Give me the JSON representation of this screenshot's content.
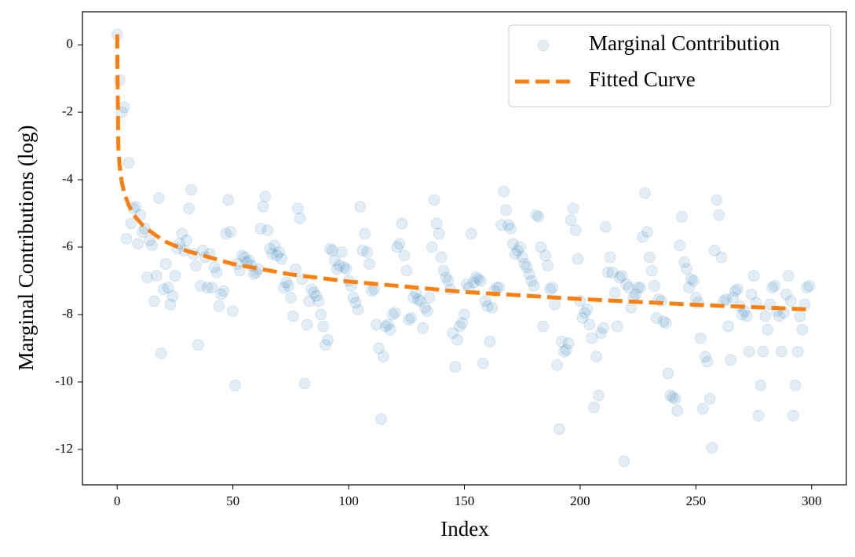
{
  "chart_data": {
    "type": "scatter",
    "xlabel": "Index",
    "ylabel": "Marginal Contributions (log)",
    "xlim": [
      -15,
      315
    ],
    "ylim": [
      -13.05,
      0.98
    ],
    "xticks": [
      0,
      50,
      100,
      150,
      200,
      250,
      300
    ],
    "yticks": [
      0,
      -2,
      -4,
      -6,
      -8,
      -10,
      -12
    ],
    "legend": "upper right",
    "series": [
      {
        "name": "Marginal Contribution",
        "type": "scatter",
        "color": "#1f77b4",
        "x": [
          0,
          1,
          2,
          3,
          4,
          5,
          6,
          7,
          8,
          9,
          10,
          11,
          12,
          13,
          14,
          15,
          16,
          17,
          18,
          19,
          20,
          21,
          22,
          23,
          24,
          25,
          26,
          27,
          28,
          29,
          30,
          31,
          32,
          33,
          34,
          35,
          36,
          37,
          38,
          39,
          40,
          41,
          42,
          43,
          44,
          45,
          46,
          47,
          48,
          49,
          50,
          51,
          52,
          53,
          54,
          55,
          56,
          57,
          58,
          59,
          60,
          61,
          62,
          63,
          64,
          65,
          66,
          67,
          68,
          69,
          70,
          71,
          72,
          73,
          74,
          75,
          76,
          77,
          78,
          79,
          80,
          81,
          82,
          83,
          84,
          85,
          86,
          87,
          88,
          89,
          90,
          91,
          92,
          93,
          94,
          95,
          96,
          97,
          98,
          99,
          100,
          101,
          102,
          103,
          104,
          105,
          106,
          107,
          108,
          109,
          110,
          111,
          112,
          113,
          114,
          115,
          116,
          117,
          118,
          119,
          120,
          121,
          122,
          123,
          124,
          125,
          126,
          127,
          128,
          129,
          130,
          131,
          132,
          133,
          134,
          135,
          136,
          137,
          138,
          139,
          140,
          141,
          142,
          143,
          144,
          145,
          146,
          147,
          148,
          149,
          150,
          151,
          152,
          153,
          154,
          155,
          156,
          157,
          158,
          159,
          160,
          161,
          162,
          163,
          164,
          165,
          166,
          167,
          168,
          169,
          170,
          171,
          172,
          173,
          174,
          175,
          176,
          177,
          178,
          179,
          180,
          181,
          182,
          183,
          184,
          185,
          186,
          187,
          188,
          189,
          190,
          191,
          192,
          193,
          194,
          195,
          196,
          197,
          198,
          199,
          200,
          201,
          202,
          203,
          204,
          205,
          206,
          207,
          208,
          209,
          210,
          211,
          212,
          213,
          214,
          215,
          216,
          217,
          218,
          219,
          220,
          221,
          222,
          223,
          224,
          225,
          226,
          227,
          228,
          229,
          230,
          231,
          232,
          233,
          234,
          235,
          236,
          237,
          238,
          239,
          240,
          241,
          242,
          243,
          244,
          245,
          246,
          247,
          248,
          249,
          250,
          251,
          252,
          253,
          254,
          255,
          256,
          257,
          258,
          259,
          260,
          261,
          262,
          263,
          264,
          265,
          266,
          267,
          268,
          269,
          270,
          271,
          272,
          273,
          274,
          275,
          276,
          277,
          278,
          279,
          280,
          281,
          282,
          283,
          284,
          285,
          286,
          287,
          288,
          289,
          290,
          291,
          292,
          293,
          294,
          295,
          296,
          297,
          298,
          299
        ],
        "values": [
          0.3,
          -1.05,
          -2.0,
          -1.85,
          -5.75,
          -3.5,
          -5.3,
          -4.85,
          -4.8,
          -5.9,
          -5.05,
          -5.55,
          -5.45,
          -6.9,
          -5.8,
          -5.95,
          -7.6,
          -6.85,
          -4.55,
          -9.15,
          -7.25,
          -6.5,
          -7.2,
          -7.7,
          -7.45,
          -6.85,
          -6.05,
          -5.9,
          -5.6,
          -6.1,
          -5.8,
          -4.85,
          -4.3,
          -6.2,
          -6.55,
          -8.9,
          -7.15,
          -6.1,
          -6.3,
          -7.2,
          -6.2,
          -7.2,
          -6.6,
          -6.75,
          -7.75,
          -7.4,
          -7.3,
          -5.6,
          -4.6,
          -5.55,
          -7.9,
          -10.1,
          -6.5,
          -6.7,
          -6.25,
          -6.3,
          -6.45,
          -6.4,
          -6.55,
          -6.8,
          -6.75,
          -6.65,
          -5.45,
          -4.8,
          -4.5,
          -5.5,
          -6.05,
          -6.2,
          -5.95,
          -6.25,
          -6.15,
          -6.35,
          -7.2,
          -7.05,
          -7.15,
          -7.5,
          -8.05,
          -6.65,
          -4.85,
          -5.15,
          -6.95,
          -10.05,
          -8.3,
          -7.6,
          -7.25,
          -7.35,
          -7.45,
          -7.6,
          -8.0,
          -8.35,
          -8.9,
          -8.75,
          -6.05,
          -6.1,
          -6.4,
          -6.65,
          -6.55,
          -6.15,
          -6.6,
          -6.65,
          -7.0,
          -7.15,
          -7.5,
          -7.65,
          -7.85,
          -4.8,
          -6.1,
          -5.6,
          -6.15,
          -6.5,
          -7.3,
          -7.25,
          -8.3,
          -9.0,
          -11.1,
          -9.25,
          -8.35,
          -8.3,
          -8.45,
          -8.0,
          -7.95,
          -6.0,
          -5.9,
          -5.3,
          -6.25,
          -6.7,
          -8.15,
          -8.1,
          -7.5,
          -7.35,
          -7.55,
          -7.6,
          -8.4,
          -7.8,
          -7.9,
          -7.5,
          -6.0,
          -4.6,
          -5.3,
          -5.6,
          -6.3,
          -6.7,
          -6.9,
          -7.0,
          -7.25,
          -8.55,
          -9.55,
          -8.75,
          -8.35,
          -8.25,
          -8.0,
          -7.1,
          -7.2,
          -5.6,
          -7.05,
          -6.9,
          -6.95,
          -7.0,
          -9.45,
          -7.6,
          -7.75,
          -8.8,
          -7.8,
          -7.3,
          -7.2,
          -7.2,
          -5.35,
          -4.35,
          -4.9,
          -5.35,
          -5.45,
          -5.9,
          -6.2,
          -6.1,
          -6.0,
          -6.3,
          -6.5,
          -6.6,
          -6.8,
          -7.0,
          -7.15,
          -5.05,
          -5.1,
          -6.0,
          -8.35,
          -6.25,
          -6.55,
          -7.25,
          -7.2,
          -7.7,
          -9.5,
          -11.4,
          -8.8,
          -9.1,
          -9.05,
          -8.85,
          -5.2,
          -4.85,
          -5.5,
          -6.35,
          -7.6,
          -8.1,
          -7.95,
          -7.85,
          -8.3,
          -8.7,
          -10.75,
          -9.25,
          -10.4,
          -8.55,
          -8.4,
          -5.4,
          -6.75,
          -6.3,
          -6.75,
          -7.35,
          -8.35,
          -6.9,
          -6.85,
          -12.35,
          -7.1,
          -7.2,
          -7.8,
          -7.5,
          -7.4,
          -7.2,
          -7.2,
          -5.7,
          -4.4,
          -5.55,
          -6.3,
          -6.7,
          -7.15,
          -8.1,
          -7.55,
          -7.6,
          -8.2,
          -8.25,
          -9.75,
          -10.4,
          -10.45,
          -10.5,
          -10.85,
          -5.95,
          -5.1,
          -6.45,
          -6.65,
          -7.2,
          -6.95,
          -7.0,
          -7.5,
          -7.65,
          -8.7,
          -10.8,
          -9.25,
          -9.4,
          -10.5,
          -11.95,
          -6.1,
          -4.6,
          -5.05,
          -6.3,
          -7.6,
          -7.55,
          -8.35,
          -9.35,
          -7.5,
          -7.3,
          -7.25,
          -7.75,
          -8.0,
          -7.9,
          -8.05,
          -9.1,
          -7.4,
          -6.85,
          -7.65,
          -11.0,
          -10.1,
          -9.1,
          -8.05,
          -8.45,
          -7.7,
          -7.2,
          -7.15,
          -7.9,
          -8.05,
          -9.1,
          -7.95,
          -7.4,
          -6.85,
          -7.6,
          -11.0,
          -10.1,
          -9.1,
          -8.05,
          -8.45,
          -7.7,
          -7.2,
          -7.15
        ]
      },
      {
        "name": "Fitted Curve",
        "type": "line",
        "color": "#ff7f0e",
        "linestyle": "dashed",
        "x": [
          0,
          0.5,
          1,
          2,
          3,
          5,
          8,
          12,
          20,
          30,
          50,
          75,
          100,
          150,
          200,
          250,
          300
        ],
        "values": [
          0.31,
          -3.04,
          -3.55,
          -4.07,
          -4.38,
          -4.76,
          -5.12,
          -5.42,
          -5.81,
          -6.11,
          -6.5,
          -6.81,
          -7.02,
          -7.33,
          -7.54,
          -7.71,
          -7.85
        ]
      }
    ]
  }
}
